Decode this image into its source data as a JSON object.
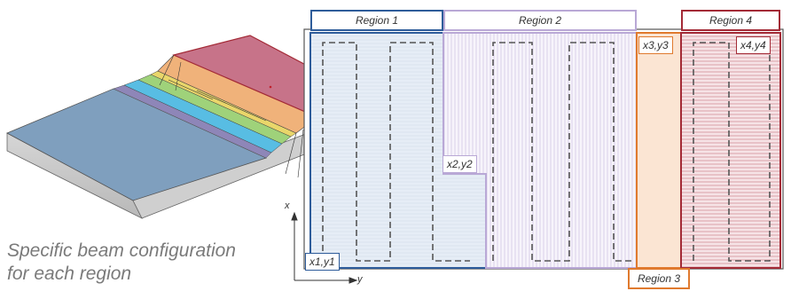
{
  "regions": [
    {
      "label": "Region 1",
      "color": "#2e5c9a"
    },
    {
      "label": "Region 2",
      "color": "#b9a8d6"
    },
    {
      "label": "Region 3",
      "color": "#e07a2e"
    },
    {
      "label": "Region 4",
      "color": "#a32a36"
    }
  ],
  "coords": [
    "x1,y1",
    "x2,y2",
    "x3,y3",
    "x4,y4"
  ],
  "axes": {
    "x": "x",
    "y": "y"
  },
  "caption": {
    "line1": "Specific beam configuration",
    "line2": "for each region"
  }
}
